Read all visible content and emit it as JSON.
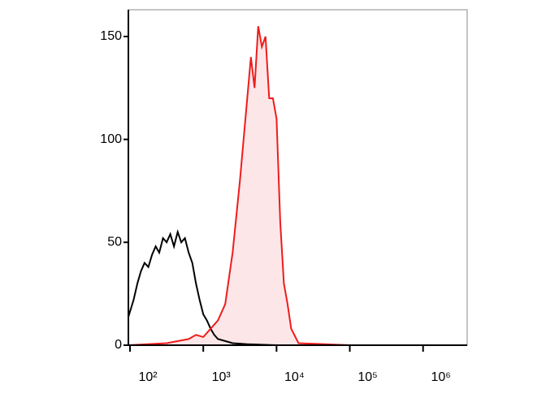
{
  "chart_data": {
    "type": "line",
    "log_x": true,
    "xlim": [
      95,
      4000000
    ],
    "ylim": [
      0,
      163
    ],
    "xticks": [
      {
        "value": 100,
        "label": "10²"
      },
      {
        "value": 1000,
        "label": "10³"
      },
      {
        "value": 10000,
        "label": "10⁴"
      },
      {
        "value": 100000,
        "label": "10⁵"
      },
      {
        "value": 1000000,
        "label": "10⁶"
      }
    ],
    "yticks": [
      0,
      50,
      100,
      150
    ],
    "series": [
      {
        "color": "#000000",
        "x": [
          95.5,
          112,
          126,
          141,
          158,
          178,
          200,
          224,
          251,
          282,
          316,
          355,
          398,
          447,
          501,
          562,
          631,
          708,
          794,
          891,
          1000,
          1122,
          1259,
          1413,
          1585,
          1995,
          2512,
          3981,
          10000,
          100000,
          1000000,
          3981072
        ],
        "values": [
          14,
          22,
          30,
          36,
          40,
          38,
          44,
          48,
          45,
          52,
          50,
          54,
          48,
          55,
          50,
          52,
          45,
          40,
          30,
          22,
          15,
          12,
          8,
          5,
          3,
          2,
          1,
          0.5,
          0,
          0,
          0,
          0
        ]
      },
      {
        "color": "#ee1c1c",
        "fill": "#fde6e8",
        "x": [
          95.5,
          316,
          631,
          794,
          1000,
          1259,
          1585,
          1995,
          2512,
          3162,
          3981,
          4467,
          5012,
          5623,
          6310,
          7079,
          7943,
          8913,
          10000,
          11220,
          12589,
          14125,
          15849,
          19953,
          100000,
          1000000,
          3981072
        ],
        "values": [
          0,
          1,
          3,
          5,
          4,
          8,
          12,
          20,
          45,
          80,
          120,
          140,
          125,
          155,
          145,
          150,
          120,
          120,
          110,
          60,
          30,
          20,
          8,
          1,
          0,
          0,
          0
        ]
      }
    ]
  }
}
